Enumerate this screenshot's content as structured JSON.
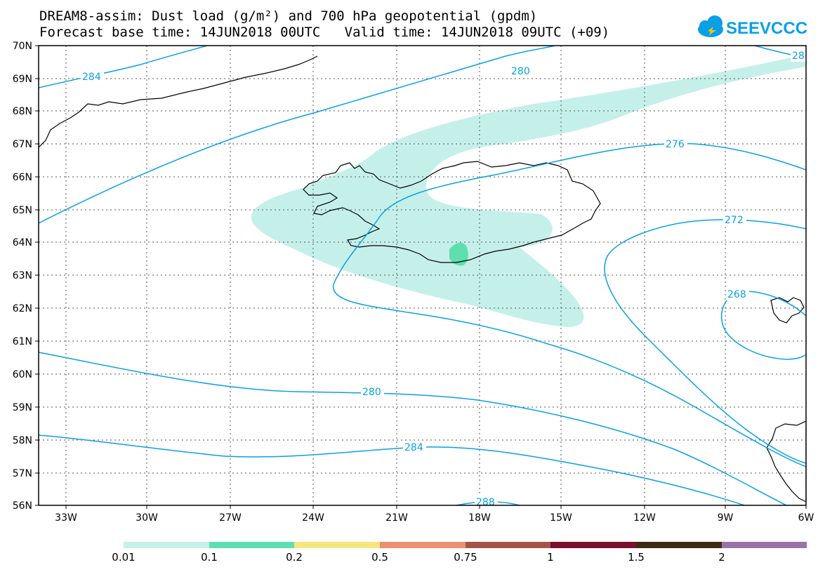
{
  "header": {
    "title_line1": "DREAM8-assim: Dust load (g/m²) and 700 hPa geopotential (gpdm)",
    "title_line2": "Forecast base time: 14JUN2018 00UTC   Valid time: 14JUN2018 09UTC (+09)",
    "logo_text": "SEEVCCC"
  },
  "map": {
    "lat_labels": [
      "70N",
      "69N",
      "68N",
      "67N",
      "66N",
      "65N",
      "64N",
      "63N",
      "62N",
      "61N",
      "60N",
      "59N",
      "58N",
      "57N",
      "56N"
    ],
    "lon_labels": [
      "33W",
      "30W",
      "27W",
      "24W",
      "21W",
      "18W",
      "15W",
      "12W",
      "9W",
      "6W"
    ],
    "contour_labels": [
      "284",
      "280",
      "28",
      "276",
      "272",
      "268",
      "280",
      "284",
      "288"
    ],
    "colors": {
      "contour": "#0aa0e6",
      "dust_low": "#c5f0ea",
      "dust_mid": "#5fdfb0"
    }
  },
  "legend": {
    "labels": [
      "0.01",
      "0.1",
      "0.2",
      "0.5",
      "0.75",
      "1",
      "1.5",
      "2"
    ],
    "colors": [
      "#c5f0ea",
      "#5fdfb0",
      "#f7e57f",
      "#ec9070",
      "#a55547",
      "#7a0f2e",
      "#3e2a12",
      "#9a72a8"
    ]
  }
}
